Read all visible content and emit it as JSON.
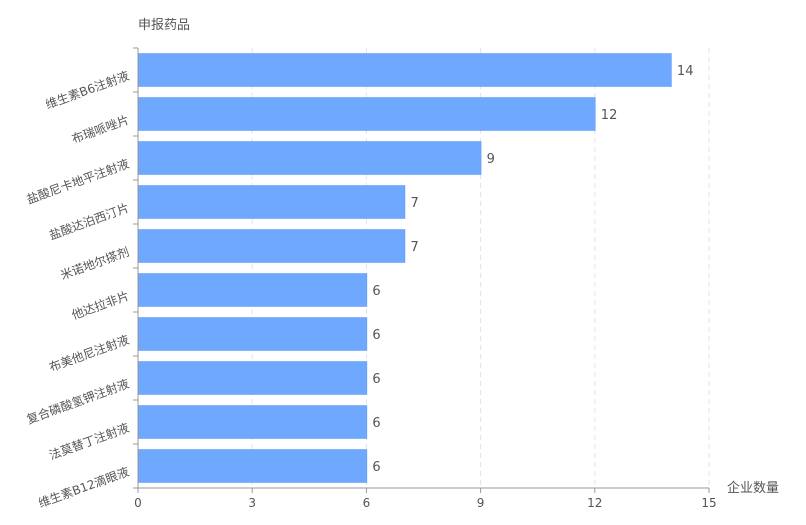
{
  "chart_data": {
    "type": "bar",
    "orientation": "horizontal",
    "categories": [
      "维生素B6注射液",
      "布瑞哌唑片",
      "盐酸尼卡地平注射液",
      "盐酸达泊西汀片",
      "米诺地尔搽剂",
      "他达拉非片",
      "布美他尼注射液",
      "复合磷酸氢钾注射液",
      "法莫替丁注射液",
      "维生素B12滴眼液"
    ],
    "values": [
      14,
      12,
      9,
      7,
      7,
      6,
      6,
      6,
      6,
      6
    ],
    "xlabel": "企业数量",
    "ylabel": "申报药品",
    "xlim": [
      0,
      15
    ],
    "xticks": [
      "0",
      "3",
      "6",
      "9",
      "12",
      "15"
    ],
    "grid": "vertical dashed",
    "bar_color": "#6ea8ff",
    "data_labels": true
  }
}
